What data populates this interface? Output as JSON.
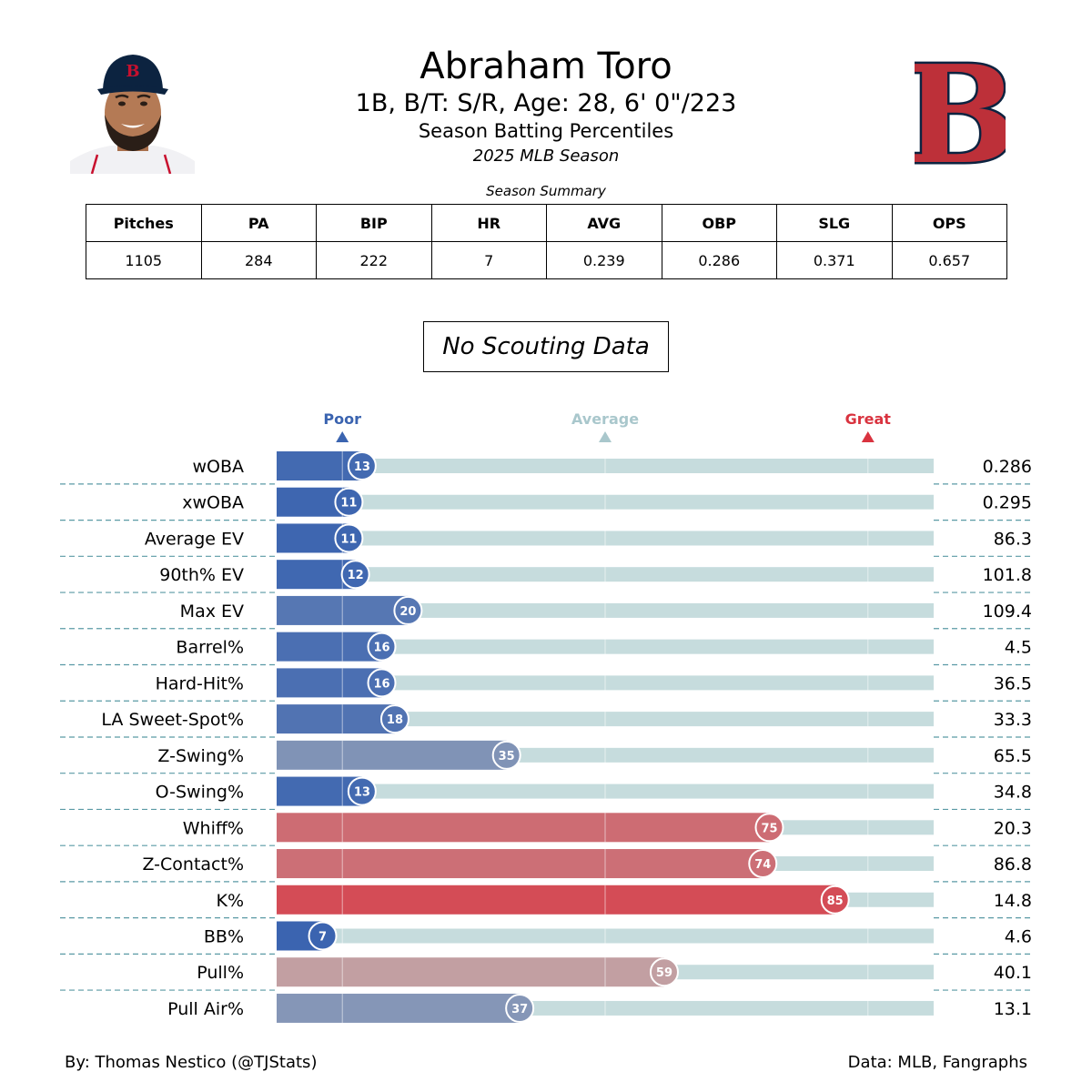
{
  "header": {
    "name": "Abraham Toro",
    "info": "1B, B/T: S/R, Age: 28, 6' 0\"/223",
    "subtitle": "Season Batting Percentiles",
    "season": "2025 MLB Season"
  },
  "summary": {
    "caption": "Season Summary",
    "headers": [
      "Pitches",
      "PA",
      "BIP",
      "HR",
      "AVG",
      "OBP",
      "SLG",
      "OPS"
    ],
    "values": [
      "1105",
      "284",
      "222",
      "7",
      "0.239",
      "0.286",
      "0.371",
      "0.657"
    ]
  },
  "scouting_note": "No Scouting Data",
  "chart_data": {
    "type": "bar",
    "scale_labels": [
      "Poor",
      "Average",
      "Great"
    ],
    "scale_marks": [
      10,
      50,
      90
    ],
    "xlim": [
      0,
      100
    ],
    "categories": [
      "wOBA",
      "xwOBA",
      "Average EV",
      "90th% EV",
      "Max EV",
      "Barrel%",
      "Hard-Hit%",
      "LA Sweet-Spot%",
      "Z-Swing%",
      "O-Swing%",
      "Whiff%",
      "Z-Contact%",
      "K%",
      "BB%",
      "Pull%",
      "Pull Air%"
    ],
    "percentiles": [
      13,
      11,
      11,
      12,
      20,
      16,
      16,
      18,
      35,
      13,
      75,
      74,
      85,
      7,
      59,
      37
    ],
    "stat_values": [
      "0.286",
      "0.295",
      "86.3",
      "101.8",
      "109.4",
      "4.5",
      "36.5",
      "33.3",
      "65.5",
      "34.8",
      "20.3",
      "86.8",
      "14.8",
      "4.6",
      "40.1",
      "13.1"
    ],
    "colors": {
      "poor": "#3b64b0",
      "average": "#a9c7cc",
      "great": "#d9333f",
      "track": "#c6dcdd",
      "separator": "#5a9aa5"
    }
  },
  "footer": {
    "credit": "By: Thomas Nestico (@TJStats)",
    "source": "Data: MLB, Fangraphs"
  }
}
